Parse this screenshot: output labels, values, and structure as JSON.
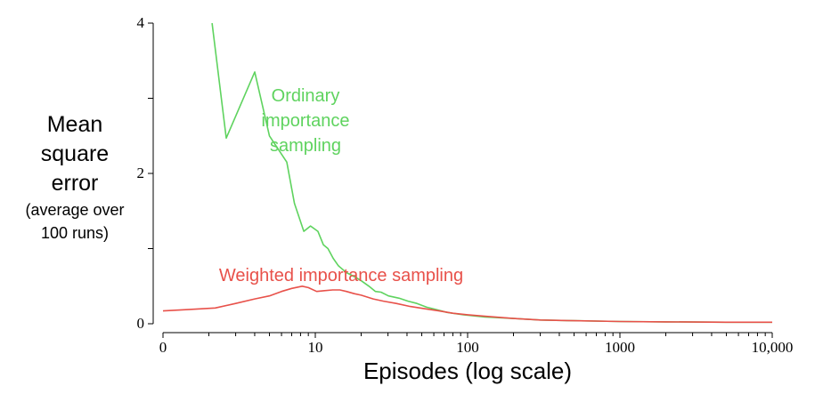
{
  "chart_data": {
    "type": "line",
    "title": "",
    "xlabel": "Episodes (log scale)",
    "ylabel_lines": [
      "Mean",
      "square",
      "error"
    ],
    "ylabel_note_lines": [
      "(average over",
      "100 runs)"
    ],
    "x_scale": "log",
    "x_ticks": [
      {
        "value": 1,
        "label": "0"
      },
      {
        "value": 10,
        "label": "10"
      },
      {
        "value": 100,
        "label": "100"
      },
      {
        "value": 1000,
        "label": "1000"
      },
      {
        "value": 10000,
        "label": "10,000"
      }
    ],
    "y_ticks": [
      {
        "value": 0,
        "label": "0"
      },
      {
        "value": 2,
        "label": "2"
      },
      {
        "value": 4,
        "label": "4"
      }
    ],
    "y_minor_ticks": [
      1,
      3
    ],
    "ylim": [
      0,
      4
    ],
    "xlim": [
      1,
      10000
    ],
    "grid": false,
    "legend": "none",
    "series": [
      {
        "name": "Ordinary importance sampling",
        "label_lines": [
          "Ordinary",
          "importance",
          "sampling"
        ],
        "color": "#5fd35f",
        "points": [
          [
            2.1,
            4.0
          ],
          [
            2.6,
            2.47
          ],
          [
            4.0,
            3.35
          ],
          [
            5.0,
            2.5
          ],
          [
            6.5,
            2.15
          ],
          [
            7.3,
            1.6
          ],
          [
            8.4,
            1.23
          ],
          [
            9.3,
            1.3
          ],
          [
            10.4,
            1.23
          ],
          [
            11.3,
            1.05
          ],
          [
            12.1,
            1.0
          ],
          [
            13.1,
            0.87
          ],
          [
            14.2,
            0.77
          ],
          [
            16.0,
            0.68
          ],
          [
            18.3,
            0.62
          ],
          [
            20.1,
            0.57
          ],
          [
            22.5,
            0.5
          ],
          [
            24.8,
            0.43
          ],
          [
            27.0,
            0.42
          ],
          [
            30.2,
            0.37
          ],
          [
            35.5,
            0.34
          ],
          [
            40.6,
            0.3
          ],
          [
            46.5,
            0.27
          ],
          [
            53.8,
            0.22
          ],
          [
            61.7,
            0.19
          ],
          [
            73.5,
            0.15
          ],
          [
            93.9,
            0.12
          ],
          [
            130,
            0.09
          ],
          [
            200,
            0.07
          ],
          [
            300,
            0.05
          ],
          [
            500,
            0.04
          ],
          [
            1000,
            0.03
          ],
          [
            2000,
            0.025
          ],
          [
            5000,
            0.02
          ],
          [
            10000,
            0.02
          ]
        ]
      },
      {
        "name": "Weighted importance sampling",
        "label_lines": [
          "Weighted importance sampling"
        ],
        "color": "#e8514a",
        "points": [
          [
            1.0,
            0.17
          ],
          [
            1.5,
            0.19
          ],
          [
            2.2,
            0.21
          ],
          [
            3.0,
            0.27
          ],
          [
            4.0,
            0.33
          ],
          [
            5.0,
            0.37
          ],
          [
            6.0,
            0.43
          ],
          [
            7.0,
            0.47
          ],
          [
            8.2,
            0.5
          ],
          [
            9.0,
            0.48
          ],
          [
            10.2,
            0.43
          ],
          [
            11.5,
            0.44
          ],
          [
            13.0,
            0.45
          ],
          [
            14.5,
            0.45
          ],
          [
            16.0,
            0.43
          ],
          [
            18.0,
            0.4
          ],
          [
            20.0,
            0.38
          ],
          [
            24.0,
            0.33
          ],
          [
            28.0,
            0.3
          ],
          [
            34.0,
            0.27
          ],
          [
            42.0,
            0.23
          ],
          [
            52.0,
            0.2
          ],
          [
            65.0,
            0.17
          ],
          [
            80.0,
            0.14
          ],
          [
            100,
            0.12
          ],
          [
            130,
            0.1
          ],
          [
            200,
            0.07
          ],
          [
            300,
            0.05
          ],
          [
            500,
            0.04
          ],
          [
            1000,
            0.03
          ],
          [
            2000,
            0.025
          ],
          [
            5000,
            0.02
          ],
          [
            10000,
            0.02
          ]
        ]
      }
    ]
  }
}
